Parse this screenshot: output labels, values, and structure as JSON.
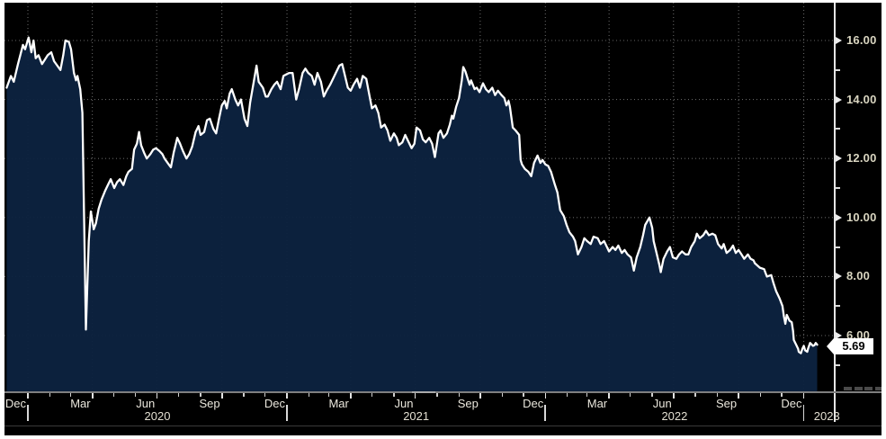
{
  "colors": {
    "page_background": "#ffffff",
    "plot_background": "#000000",
    "area_fill": "#0d2240",
    "line": "#ffffff",
    "grid": "#b5b5b5",
    "axis_line": "#e6e6e6",
    "tick_label": "#d9d5c0",
    "month_label": "#eae7dd",
    "year_label": "#e3dfd2",
    "price_label_bg": "#ffffff",
    "price_label_text": "#000000",
    "bottom_border": "#7f7f7f"
  },
  "chart_data": {
    "type": "area",
    "title": "",
    "legend_position": "none",
    "grid": "dotted",
    "last_price": {
      "label": "5.69",
      "value": 5.69
    },
    "y_axis": {
      "side": "right",
      "major_ticks": [
        {
          "value": 16,
          "label": "16.00"
        },
        {
          "value": 14,
          "label": "14.00"
        },
        {
          "value": 12,
          "label": "12.00"
        },
        {
          "value": 10,
          "label": "10.00"
        },
        {
          "value": 8,
          "label": "8.00"
        },
        {
          "value": 6,
          "label": "6.00"
        }
      ],
      "minor_tick_values": [
        15,
        13,
        11,
        9,
        7,
        5
      ],
      "visible_range": [
        4.1,
        17.3
      ]
    },
    "x_axis": {
      "range": [
        "2019-12-01",
        "2023-01-19"
      ],
      "quarter_ticks": [
        {
          "date": "2019-12-31",
          "label": "Dec"
        },
        {
          "date": "2020-03-31",
          "label": "Mar"
        },
        {
          "date": "2020-06-30",
          "label": "Jun"
        },
        {
          "date": "2020-09-30",
          "label": "Sep"
        },
        {
          "date": "2020-12-31",
          "label": "Dec"
        },
        {
          "date": "2021-03-31",
          "label": "Mar"
        },
        {
          "date": "2021-06-30",
          "label": "Jun"
        },
        {
          "date": "2021-09-30",
          "label": "Sep"
        },
        {
          "date": "2021-12-31",
          "label": "Dec"
        },
        {
          "date": "2022-03-31",
          "label": "Mar"
        },
        {
          "date": "2022-06-30",
          "label": "Jun"
        },
        {
          "date": "2022-09-30",
          "label": "Sep"
        },
        {
          "date": "2022-12-31",
          "label": "Dec"
        }
      ],
      "year_labels": [
        "2020",
        "2021",
        "2022",
        "2023"
      ]
    },
    "points": [
      [
        "2019-12-01",
        14.4
      ],
      [
        "2019-12-07",
        14.8
      ],
      [
        "2019-12-11",
        14.6
      ],
      [
        "2019-12-17",
        15.2
      ],
      [
        "2019-12-24",
        15.85
      ],
      [
        "2019-12-27",
        15.7
      ],
      [
        "2020-01-01",
        16.1
      ],
      [
        "2020-01-05",
        15.6
      ],
      [
        "2020-01-08",
        16.0
      ],
      [
        "2020-01-11",
        15.4
      ],
      [
        "2020-01-15",
        15.5
      ],
      [
        "2020-01-20",
        15.2
      ],
      [
        "2020-01-28",
        15.5
      ],
      [
        "2020-02-02",
        15.6
      ],
      [
        "2020-02-06",
        15.3
      ],
      [
        "2020-02-15",
        15.0
      ],
      [
        "2020-02-19",
        15.5
      ],
      [
        "2020-02-22",
        16.0
      ],
      [
        "2020-02-27",
        15.95
      ],
      [
        "2020-03-01",
        15.7
      ],
      [
        "2020-03-05",
        14.9
      ],
      [
        "2020-03-08",
        14.65
      ],
      [
        "2020-03-10",
        14.8
      ],
      [
        "2020-03-14",
        14.35
      ],
      [
        "2020-03-17",
        13.55
      ],
      [
        "2020-03-22",
        6.2
      ],
      [
        "2020-03-26",
        9.2
      ],
      [
        "2020-03-29",
        10.2
      ],
      [
        "2020-04-02",
        9.6
      ],
      [
        "2020-04-05",
        9.8
      ],
      [
        "2020-04-09",
        10.3
      ],
      [
        "2020-04-13",
        10.6
      ],
      [
        "2020-04-18",
        10.9
      ],
      [
        "2020-04-22",
        11.1
      ],
      [
        "2020-04-26",
        11.3
      ],
      [
        "2020-05-01",
        11.0
      ],
      [
        "2020-05-05",
        11.2
      ],
      [
        "2020-05-09",
        11.3
      ],
      [
        "2020-05-14",
        11.1
      ],
      [
        "2020-05-18",
        11.4
      ],
      [
        "2020-05-21",
        11.55
      ],
      [
        "2020-05-26",
        11.65
      ],
      [
        "2020-05-29",
        12.3
      ],
      [
        "2020-06-02",
        12.5
      ],
      [
        "2020-06-05",
        12.9
      ],
      [
        "2020-06-08",
        12.45
      ],
      [
        "2020-06-12",
        12.2
      ],
      [
        "2020-06-16",
        12.0
      ],
      [
        "2020-06-21",
        12.15
      ],
      [
        "2020-06-25",
        12.3
      ],
      [
        "2020-06-29",
        12.35
      ],
      [
        "2020-07-04",
        12.25
      ],
      [
        "2020-07-08",
        12.15
      ],
      [
        "2020-07-11",
        12.0
      ],
      [
        "2020-07-17",
        11.8
      ],
      [
        "2020-07-20",
        11.7
      ],
      [
        "2020-07-24",
        12.2
      ],
      [
        "2020-07-29",
        12.7
      ],
      [
        "2020-08-02",
        12.5
      ],
      [
        "2020-08-06",
        12.25
      ],
      [
        "2020-08-11",
        12.0
      ],
      [
        "2020-08-15",
        12.15
      ],
      [
        "2020-08-19",
        12.4
      ],
      [
        "2020-08-24",
        12.9
      ],
      [
        "2020-08-28",
        13.1
      ],
      [
        "2020-08-31",
        12.8
      ],
      [
        "2020-09-05",
        12.9
      ],
      [
        "2020-09-09",
        13.3
      ],
      [
        "2020-09-13",
        13.35
      ],
      [
        "2020-09-18",
        13.0
      ],
      [
        "2020-09-22",
        12.85
      ],
      [
        "2020-09-26",
        13.35
      ],
      [
        "2020-09-30",
        13.8
      ],
      [
        "2020-10-04",
        13.95
      ],
      [
        "2020-10-07",
        13.7
      ],
      [
        "2020-10-11",
        14.2
      ],
      [
        "2020-10-14",
        14.35
      ],
      [
        "2020-10-19",
        14.0
      ],
      [
        "2020-10-23",
        13.8
      ],
      [
        "2020-10-27",
        14.0
      ],
      [
        "2020-11-01",
        13.35
      ],
      [
        "2020-11-05",
        13.1
      ],
      [
        "2020-11-09",
        13.9
      ],
      [
        "2020-11-14",
        14.6
      ],
      [
        "2020-11-18",
        15.15
      ],
      [
        "2020-11-21",
        14.6
      ],
      [
        "2020-11-27",
        14.4
      ],
      [
        "2020-12-01",
        14.1
      ],
      [
        "2020-12-04",
        14.1
      ],
      [
        "2020-12-09",
        14.35
      ],
      [
        "2020-12-13",
        14.5
      ],
      [
        "2020-12-17",
        14.6
      ],
      [
        "2020-12-22",
        14.35
      ],
      [
        "2020-12-26",
        14.8
      ],
      [
        "2020-12-30",
        14.85
      ],
      [
        "2021-01-03",
        14.9
      ],
      [
        "2021-01-08",
        14.9
      ],
      [
        "2021-01-13",
        14.0
      ],
      [
        "2021-01-17",
        14.35
      ],
      [
        "2021-01-22",
        14.9
      ],
      [
        "2021-01-26",
        15.05
      ],
      [
        "2021-01-30",
        14.9
      ],
      [
        "2021-02-04",
        14.8
      ],
      [
        "2021-02-08",
        14.5
      ],
      [
        "2021-02-12",
        14.9
      ],
      [
        "2021-02-17",
        14.6
      ],
      [
        "2021-02-21",
        14.1
      ],
      [
        "2021-02-25",
        14.3
      ],
      [
        "2021-03-02",
        14.5
      ],
      [
        "2021-03-06",
        14.7
      ],
      [
        "2021-03-10",
        14.9
      ],
      [
        "2021-03-15",
        15.15
      ],
      [
        "2021-03-19",
        15.2
      ],
      [
        "2021-03-22",
        14.9
      ],
      [
        "2021-03-27",
        14.4
      ],
      [
        "2021-03-31",
        14.3
      ],
      [
        "2021-04-04",
        14.5
      ],
      [
        "2021-04-09",
        14.7
      ],
      [
        "2021-04-13",
        14.4
      ],
      [
        "2021-04-17",
        14.8
      ],
      [
        "2021-04-22",
        14.7
      ],
      [
        "2021-04-26",
        14.2
      ],
      [
        "2021-04-30",
        13.7
      ],
      [
        "2021-05-05",
        13.8
      ],
      [
        "2021-05-09",
        13.55
      ],
      [
        "2021-05-13",
        13.05
      ],
      [
        "2021-05-18",
        13.15
      ],
      [
        "2021-05-22",
        12.95
      ],
      [
        "2021-05-26",
        12.6
      ],
      [
        "2021-05-31",
        12.85
      ],
      [
        "2021-06-04",
        12.7
      ],
      [
        "2021-06-07",
        12.45
      ],
      [
        "2021-06-12",
        12.55
      ],
      [
        "2021-06-16",
        12.8
      ],
      [
        "2021-06-20",
        12.6
      ],
      [
        "2021-06-25",
        12.35
      ],
      [
        "2021-06-29",
        12.5
      ],
      [
        "2021-07-02",
        13.05
      ],
      [
        "2021-07-07",
        12.95
      ],
      [
        "2021-07-11",
        12.65
      ],
      [
        "2021-07-15",
        12.55
      ],
      [
        "2021-07-20",
        12.7
      ],
      [
        "2021-07-24",
        12.5
      ],
      [
        "2021-07-28",
        12.05
      ],
      [
        "2021-08-02",
        12.85
      ],
      [
        "2021-08-05",
        12.95
      ],
      [
        "2021-08-09",
        12.7
      ],
      [
        "2021-08-14",
        12.85
      ],
      [
        "2021-08-18",
        13.15
      ],
      [
        "2021-08-21",
        13.45
      ],
      [
        "2021-08-23",
        13.35
      ],
      [
        "2021-08-27",
        13.75
      ],
      [
        "2021-08-31",
        14.05
      ],
      [
        "2021-09-04",
        14.65
      ],
      [
        "2021-09-06",
        15.1
      ],
      [
        "2021-09-09",
        14.95
      ],
      [
        "2021-09-13",
        14.65
      ],
      [
        "2021-09-15",
        14.5
      ],
      [
        "2021-09-17",
        14.65
      ],
      [
        "2021-09-22",
        14.35
      ],
      [
        "2021-09-25",
        14.4
      ],
      [
        "2021-09-29",
        14.25
      ],
      [
        "2021-10-04",
        14.55
      ],
      [
        "2021-10-08",
        14.35
      ],
      [
        "2021-10-12",
        14.25
      ],
      [
        "2021-10-17",
        14.4
      ],
      [
        "2021-10-21",
        14.15
      ],
      [
        "2021-10-25",
        14.3
      ],
      [
        "2021-10-30",
        14.15
      ],
      [
        "2021-11-03",
        14.05
      ],
      [
        "2021-11-06",
        13.8
      ],
      [
        "2021-11-09",
        13.95
      ],
      [
        "2021-11-11",
        13.75
      ],
      [
        "2021-11-15",
        13.05
      ],
      [
        "2021-11-19",
        12.95
      ],
      [
        "2021-11-24",
        12.8
      ],
      [
        "2021-11-26",
        11.95
      ],
      [
        "2021-11-28",
        11.8
      ],
      [
        "2021-12-02",
        11.65
      ],
      [
        "2021-12-07",
        11.55
      ],
      [
        "2021-12-11",
        11.4
      ],
      [
        "2021-12-15",
        11.85
      ],
      [
        "2021-12-20",
        12.1
      ],
      [
        "2021-12-24",
        11.85
      ],
      [
        "2021-12-27",
        11.95
      ],
      [
        "2021-12-31",
        11.8
      ],
      [
        "2022-01-04",
        11.75
      ],
      [
        "2022-01-08",
        11.55
      ],
      [
        "2022-01-13",
        11.15
      ],
      [
        "2022-01-17",
        10.85
      ],
      [
        "2022-01-21",
        10.25
      ],
      [
        "2022-01-26",
        10.05
      ],
      [
        "2022-01-30",
        9.75
      ],
      [
        "2022-02-03",
        9.5
      ],
      [
        "2022-02-08",
        9.35
      ],
      [
        "2022-02-11",
        9.2
      ],
      [
        "2022-02-15",
        8.75
      ],
      [
        "2022-02-20",
        9.0
      ],
      [
        "2022-02-24",
        9.3
      ],
      [
        "2022-02-28",
        9.2
      ],
      [
        "2022-03-05",
        9.1
      ],
      [
        "2022-03-09",
        9.35
      ],
      [
        "2022-03-15",
        9.3
      ],
      [
        "2022-03-19",
        9.1
      ],
      [
        "2022-03-24",
        9.2
      ],
      [
        "2022-03-28",
        9.0
      ],
      [
        "2022-03-31",
        8.85
      ],
      [
        "2022-04-05",
        9.0
      ],
      [
        "2022-04-09",
        8.9
      ],
      [
        "2022-04-13",
        9.05
      ],
      [
        "2022-04-18",
        8.8
      ],
      [
        "2022-04-22",
        8.9
      ],
      [
        "2022-04-26",
        8.75
      ],
      [
        "2022-05-01",
        8.65
      ],
      [
        "2022-05-05",
        8.2
      ],
      [
        "2022-05-09",
        8.65
      ],
      [
        "2022-05-14",
        9.0
      ],
      [
        "2022-05-18",
        9.4
      ],
      [
        "2022-05-21",
        9.75
      ],
      [
        "2022-05-27",
        10.0
      ],
      [
        "2022-05-31",
        9.65
      ],
      [
        "2022-06-02",
        9.2
      ],
      [
        "2022-06-06",
        8.8
      ],
      [
        "2022-06-10",
        8.4
      ],
      [
        "2022-06-12",
        8.15
      ],
      [
        "2022-06-16",
        8.6
      ],
      [
        "2022-06-21",
        8.85
      ],
      [
        "2022-06-25",
        9.0
      ],
      [
        "2022-06-29",
        8.65
      ],
      [
        "2022-07-04",
        8.6
      ],
      [
        "2022-07-08",
        8.75
      ],
      [
        "2022-07-12",
        8.85
      ],
      [
        "2022-07-17",
        8.75
      ],
      [
        "2022-07-21",
        8.75
      ],
      [
        "2022-07-25",
        9.0
      ],
      [
        "2022-07-30",
        9.2
      ],
      [
        "2022-08-02",
        9.45
      ],
      [
        "2022-08-06",
        9.3
      ],
      [
        "2022-08-11",
        9.4
      ],
      [
        "2022-08-15",
        9.55
      ],
      [
        "2022-08-19",
        9.4
      ],
      [
        "2022-08-24",
        9.45
      ],
      [
        "2022-08-28",
        9.4
      ],
      [
        "2022-09-01",
        9.1
      ],
      [
        "2022-09-06",
        8.95
      ],
      [
        "2022-09-09",
        9.1
      ],
      [
        "2022-09-13",
        8.8
      ],
      [
        "2022-09-18",
        8.9
      ],
      [
        "2022-09-22",
        9.05
      ],
      [
        "2022-09-26",
        8.8
      ],
      [
        "2022-09-30",
        8.9
      ],
      [
        "2022-10-04",
        8.75
      ],
      [
        "2022-10-08",
        8.6
      ],
      [
        "2022-10-13",
        8.75
      ],
      [
        "2022-10-17",
        8.6
      ],
      [
        "2022-10-21",
        8.55
      ],
      [
        "2022-10-23",
        8.45
      ],
      [
        "2022-10-30",
        8.3
      ],
      [
        "2022-11-05",
        8.25
      ],
      [
        "2022-11-09",
        8.0
      ],
      [
        "2022-11-15",
        8.05
      ],
      [
        "2022-11-18",
        7.8
      ],
      [
        "2022-11-22",
        7.5
      ],
      [
        "2022-11-27",
        7.25
      ],
      [
        "2022-12-01",
        7.0
      ],
      [
        "2022-12-03",
        6.65
      ],
      [
        "2022-12-05",
        6.4
      ],
      [
        "2022-12-07",
        6.7
      ],
      [
        "2022-12-11",
        6.5
      ],
      [
        "2022-12-14",
        6.45
      ],
      [
        "2022-12-16",
        6.15
      ],
      [
        "2022-12-17",
        5.85
      ],
      [
        "2022-12-20",
        5.7
      ],
      [
        "2022-12-23",
        5.55
      ],
      [
        "2022-12-24",
        5.45
      ],
      [
        "2022-12-27",
        5.4
      ],
      [
        "2022-12-29",
        5.55
      ],
      [
        "2022-12-31",
        5.65
      ],
      [
        "2023-01-02",
        5.5
      ],
      [
        "2023-01-05",
        5.45
      ],
      [
        "2023-01-06",
        5.55
      ],
      [
        "2023-01-09",
        5.75
      ],
      [
        "2023-01-11",
        5.7
      ],
      [
        "2023-01-13",
        5.65
      ],
      [
        "2023-01-15",
        5.67
      ],
      [
        "2023-01-17",
        5.75
      ],
      [
        "2023-01-19",
        5.69
      ]
    ]
  }
}
